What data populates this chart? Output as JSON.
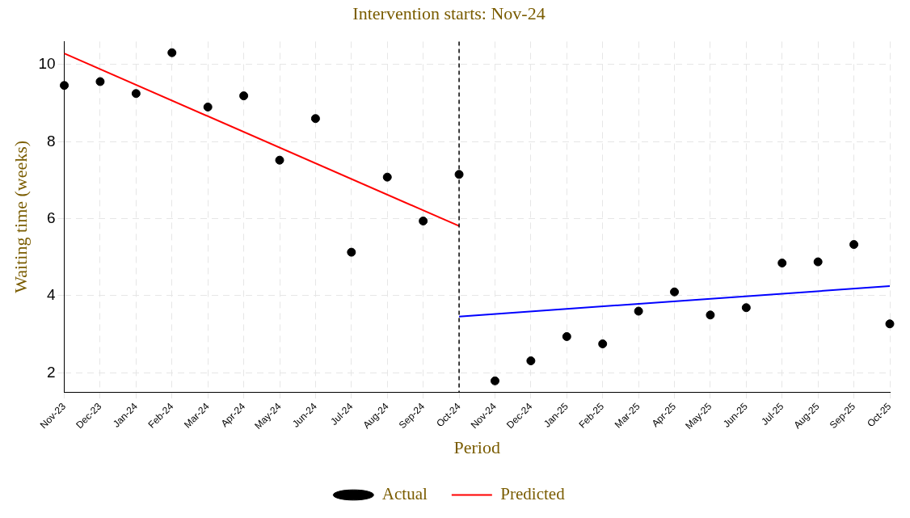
{
  "chart_data": {
    "type": "scatter",
    "title": "Intervention starts: Nov-24",
    "xlabel": "Period",
    "ylabel": "Waiting time (weeks)",
    "categories": [
      "Nov-23",
      "Dec-23",
      "Jan-24",
      "Feb-24",
      "Mar-24",
      "Apr-24",
      "May-24",
      "Jun-24",
      "Jul-24",
      "Aug-24",
      "Sep-24",
      "Oct-24",
      "Nov-24",
      "Dec-24",
      "Jan-25",
      "Feb-25",
      "Mar-25",
      "Apr-25",
      "May-25",
      "Jun-25",
      "Jul-25",
      "Aug-25",
      "Sep-25",
      "Oct-25"
    ],
    "series": [
      {
        "name": "Actual",
        "color": "#000000",
        "marker": "circle",
        "values": [
          9.46,
          9.56,
          9.25,
          10.31,
          8.9,
          9.19,
          7.52,
          8.6,
          5.13,
          7.08,
          5.94,
          7.15,
          1.79,
          2.31,
          2.94,
          2.75,
          3.6,
          4.1,
          3.5,
          3.69,
          4.85,
          4.88,
          5.33,
          3.27
        ]
      },
      {
        "name": "Predicted",
        "type": "line",
        "color": "#ff0000",
        "x": [
          "Nov-23",
          "Oct-24"
        ],
        "values": [
          10.29,
          5.81
        ]
      },
      {
        "type": "line",
        "color": "#0000ff",
        "x": [
          "Oct-24",
          "Oct-25"
        ],
        "values": [
          3.46,
          4.25
        ]
      }
    ],
    "ylim": [
      1.5,
      10.6
    ],
    "yticks": [
      2,
      4,
      6,
      8,
      10
    ],
    "grid": true,
    "legend": "bottom",
    "ref_lines": [
      {
        "axis": "x",
        "value": "Oct-24",
        "color": "#000000",
        "line_style": "dashed"
      }
    ]
  }
}
